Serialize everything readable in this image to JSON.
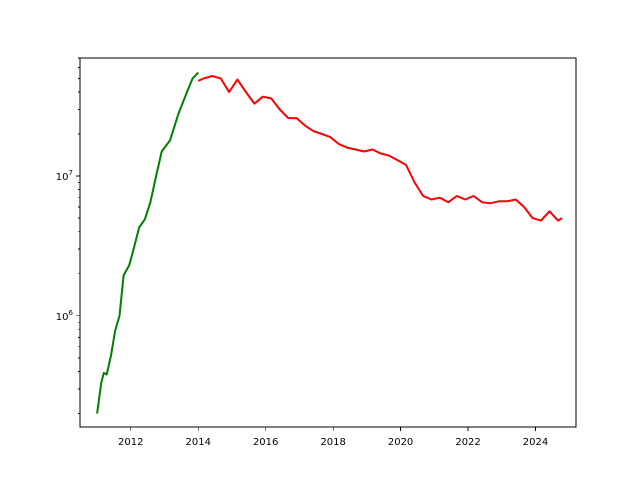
{
  "chart_data": {
    "type": "line",
    "title": "",
    "xlabel": "",
    "ylabel": "",
    "y_scale": "log",
    "grid": false,
    "legend": "none",
    "xlim": [
      "2010-06-30",
      "2025-03-15"
    ],
    "ylim": [
      160000,
      70000000
    ],
    "x_ticks": [
      {
        "value": "2012-01-01",
        "label": "2012"
      },
      {
        "value": "2014-01-01",
        "label": "2014"
      },
      {
        "value": "2016-01-01",
        "label": "2016"
      },
      {
        "value": "2018-01-01",
        "label": "2018"
      },
      {
        "value": "2020-01-01",
        "label": "2020"
      },
      {
        "value": "2022-01-01",
        "label": "2022"
      },
      {
        "value": "2024-01-01",
        "label": "2024"
      }
    ],
    "y_ticks": [
      {
        "value": 1000000,
        "base": "10",
        "exp": "6"
      },
      {
        "value": 10000000,
        "base": "10",
        "exp": "7"
      }
    ],
    "series": [
      {
        "color": "#008000",
        "points": [
          [
            "2011-01-01",
            200000
          ],
          [
            "2011-02-15",
            330000
          ],
          [
            "2011-03-15",
            390000
          ],
          [
            "2011-04-15",
            380000
          ],
          [
            "2011-06-01",
            520000
          ],
          [
            "2011-07-15",
            780000
          ],
          [
            "2011-09-01",
            1000000
          ],
          [
            "2011-10-15",
            1950000
          ],
          [
            "2011-12-15",
            2300000
          ],
          [
            "2012-02-01",
            3000000
          ],
          [
            "2012-04-01",
            4300000
          ],
          [
            "2012-06-01",
            4900000
          ],
          [
            "2012-08-01",
            6500000
          ],
          [
            "2012-10-01",
            10000000
          ],
          [
            "2012-12-01",
            15000000
          ],
          [
            "2013-03-01",
            18000000
          ],
          [
            "2013-06-01",
            28000000
          ],
          [
            "2013-09-01",
            40000000
          ],
          [
            "2013-11-01",
            50000000
          ],
          [
            "2013-12-31",
            55000000
          ]
        ]
      },
      {
        "color": "#ff0000",
        "points": [
          [
            "2013-12-31",
            48000000
          ],
          [
            "2014-03-01",
            50000000
          ],
          [
            "2014-06-01",
            52000000
          ],
          [
            "2014-09-01",
            50000000
          ],
          [
            "2014-12-01",
            40000000
          ],
          [
            "2015-03-01",
            49000000
          ],
          [
            "2015-06-01",
            40000000
          ],
          [
            "2015-09-01",
            33000000
          ],
          [
            "2015-12-01",
            37000000
          ],
          [
            "2016-03-01",
            36000000
          ],
          [
            "2016-06-01",
            30000000
          ],
          [
            "2016-09-01",
            26000000
          ],
          [
            "2016-12-01",
            26000000
          ],
          [
            "2017-03-01",
            23000000
          ],
          [
            "2017-06-01",
            21000000
          ],
          [
            "2017-09-01",
            20000000
          ],
          [
            "2017-12-01",
            19000000
          ],
          [
            "2018-03-01",
            17000000
          ],
          [
            "2018-06-01",
            16000000
          ],
          [
            "2018-09-01",
            15500000
          ],
          [
            "2018-12-01",
            15000000
          ],
          [
            "2019-03-01",
            15500000
          ],
          [
            "2019-06-01",
            14500000
          ],
          [
            "2019-09-01",
            14000000
          ],
          [
            "2019-12-01",
            13000000
          ],
          [
            "2020-03-01",
            12000000
          ],
          [
            "2020-06-01",
            9000000
          ],
          [
            "2020-09-01",
            7200000
          ],
          [
            "2020-12-01",
            6800000
          ],
          [
            "2021-03-01",
            7000000
          ],
          [
            "2021-06-01",
            6500000
          ],
          [
            "2021-09-01",
            7200000
          ],
          [
            "2021-12-01",
            6800000
          ],
          [
            "2022-03-01",
            7200000
          ],
          [
            "2022-06-01",
            6500000
          ],
          [
            "2022-09-01",
            6400000
          ],
          [
            "2022-12-01",
            6600000
          ],
          [
            "2023-03-01",
            6600000
          ],
          [
            "2023-06-01",
            6800000
          ],
          [
            "2023-09-01",
            6000000
          ],
          [
            "2023-12-01",
            5000000
          ],
          [
            "2024-03-01",
            4800000
          ],
          [
            "2024-06-01",
            5600000
          ],
          [
            "2024-09-01",
            4800000
          ],
          [
            "2024-10-15",
            5000000
          ]
        ]
      }
    ]
  }
}
